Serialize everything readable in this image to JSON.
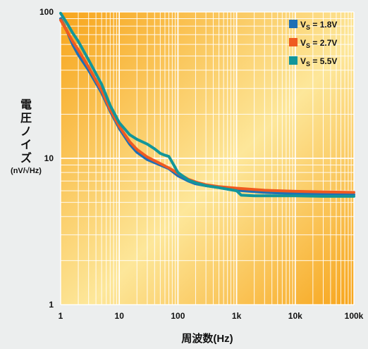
{
  "chart_data": {
    "type": "line",
    "xscale": "log",
    "yscale": "log",
    "xlim": [
      1,
      100000
    ],
    "ylim": [
      1,
      100
    ],
    "x_ticks": [
      1,
      10,
      100,
      1000,
      10000,
      100000
    ],
    "x_tick_labels": [
      "1",
      "10",
      "100",
      "1k",
      "10k",
      "100k"
    ],
    "y_ticks": [
      1,
      10,
      100
    ],
    "y_tick_labels": [
      "1",
      "10",
      "100"
    ],
    "xlabel": "周波数(Hz)",
    "ylabel_chars": [
      "電",
      "圧",
      "ノ",
      "イ",
      "ズ"
    ],
    "ylabel_unit": "(nV/√Hz)",
    "grid": true,
    "legend_position": "top-right",
    "background_colors": [
      "#f7a51c",
      "#fde79a"
    ],
    "series": [
      {
        "name_main": "V",
        "name_sub": "S",
        "name_value": "= 1.8V",
        "color": "#1e6fb5",
        "points": [
          [
            1,
            90
          ],
          [
            1.3,
            73
          ],
          [
            1.6,
            60
          ],
          [
            2,
            51
          ],
          [
            3,
            40
          ],
          [
            5,
            28
          ],
          [
            7,
            21
          ],
          [
            10,
            16
          ],
          [
            15,
            12.5
          ],
          [
            20,
            11
          ],
          [
            30,
            9.8
          ],
          [
            50,
            9.0
          ],
          [
            70,
            8.5
          ],
          [
            100,
            7.6
          ],
          [
            150,
            7.0
          ],
          [
            200,
            6.7
          ],
          [
            300,
            6.5
          ],
          [
            500,
            6.3
          ],
          [
            1000,
            6.05
          ],
          [
            3000,
            5.85
          ],
          [
            10000,
            5.75
          ],
          [
            30000,
            5.7
          ],
          [
            100000,
            5.65
          ]
        ]
      },
      {
        "name_main": "V",
        "name_sub": "S",
        "name_value": "= 2.7V",
        "color": "#ef5a21",
        "points": [
          [
            1,
            88
          ],
          [
            1.3,
            73
          ],
          [
            1.6,
            63
          ],
          [
            2,
            55
          ],
          [
            3,
            42
          ],
          [
            5,
            29
          ],
          [
            7,
            21.5
          ],
          [
            10,
            16.5
          ],
          [
            15,
            13
          ],
          [
            20,
            11.5
          ],
          [
            30,
            10.2
          ],
          [
            50,
            9.2
          ],
          [
            70,
            8.6
          ],
          [
            100,
            7.9
          ],
          [
            150,
            7.2
          ],
          [
            200,
            6.9
          ],
          [
            300,
            6.6
          ],
          [
            500,
            6.4
          ],
          [
            1000,
            6.25
          ],
          [
            3000,
            6.05
          ],
          [
            10000,
            5.95
          ],
          [
            30000,
            5.9
          ],
          [
            100000,
            5.85
          ]
        ]
      },
      {
        "name_main": "V",
        "name_sub": "S",
        "name_value": "= 5.5V",
        "color": "#12969a",
        "points": [
          [
            1,
            98
          ],
          [
            1.3,
            83
          ],
          [
            1.6,
            72
          ],
          [
            2,
            63
          ],
          [
            3,
            47
          ],
          [
            5,
            32
          ],
          [
            7,
            23
          ],
          [
            10,
            17.5
          ],
          [
            15,
            14.5
          ],
          [
            20,
            13.5
          ],
          [
            30,
            12.5
          ],
          [
            40,
            11.6
          ],
          [
            50,
            10.8
          ],
          [
            60,
            10.5
          ],
          [
            70,
            10.3
          ],
          [
            85,
            9.0
          ],
          [
            100,
            8.0
          ],
          [
            150,
            7.1
          ],
          [
            200,
            6.8
          ],
          [
            300,
            6.5
          ],
          [
            500,
            6.3
          ],
          [
            700,
            6.15
          ],
          [
            1000,
            6.0
          ],
          [
            1200,
            5.6
          ],
          [
            2000,
            5.55
          ],
          [
            5000,
            5.55
          ],
          [
            10000,
            5.55
          ],
          [
            30000,
            5.5
          ],
          [
            100000,
            5.5
          ]
        ]
      }
    ]
  }
}
